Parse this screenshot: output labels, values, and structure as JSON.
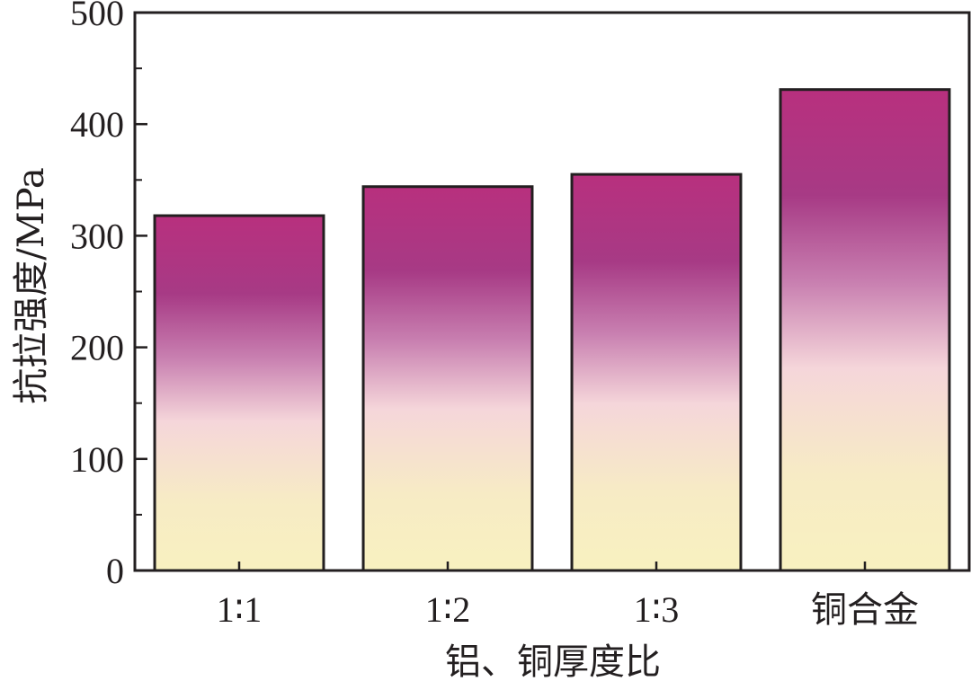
{
  "chart_data": {
    "type": "bar",
    "categories": [
      "1∶1",
      "1∶2",
      "1∶3",
      "铜合金"
    ],
    "values": [
      318,
      344,
      355,
      431
    ],
    "xlabel": "铝、铜厚度比",
    "ylabel": "抗拉强度/MPa",
    "ylim": [
      0,
      500
    ],
    "yticks": [
      0,
      100,
      200,
      300,
      400,
      500
    ],
    "grid": false,
    "bar_gradient": [
      "#b8307e",
      "#a73a85",
      "#c87fb0",
      "#f5d6da",
      "#f7ebc5",
      "#f8f1c0"
    ],
    "bar_edge_color": "#231f20"
  }
}
